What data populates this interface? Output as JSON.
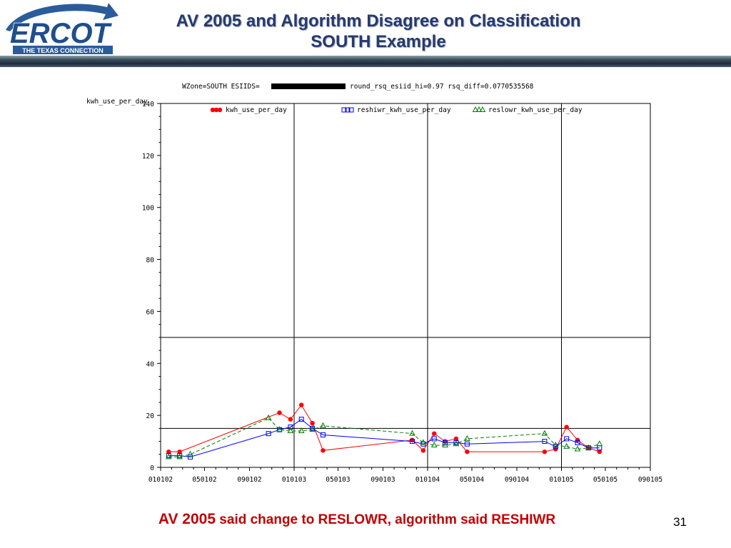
{
  "header": {
    "logo_text": "ERCOT",
    "logo_tagline": "THE TEXAS CONNECTION",
    "title_line1": "AV 2005 and Algorithm Disagree on Classification",
    "title_line2": "SOUTH Example"
  },
  "chart_data": {
    "type": "line",
    "title_prefix": "WZone=SOUTH ESIIDS=",
    "title_suffix": "round_rsq_esiid_hi=0.97 rsq_diff=0.0770535568",
    "ylabel": "kwh_use_per_day",
    "ylim": [
      0,
      140
    ],
    "yticks": [
      0,
      20,
      40,
      60,
      80,
      100,
      120,
      140
    ],
    "xticks": [
      "010102",
      "050102",
      "090102",
      "010103",
      "050103",
      "090103",
      "010104",
      "050104",
      "090104",
      "010105",
      "050105",
      "090105"
    ],
    "xlim": [
      "010102",
      "090105"
    ],
    "reference_lines_x": [
      "010102",
      "010103",
      "010104",
      "010105"
    ],
    "reference_lines_y": [
      15,
      50
    ],
    "legend_position": "top",
    "series": [
      {
        "name": "kwh_use_per_day",
        "color": "#ff0000",
        "marker": "dot",
        "dash": "solid",
        "points": [
          [
            "2002-01-23",
            6
          ],
          [
            "2002-02-22",
            6
          ],
          [
            "2002-11-22",
            21
          ],
          [
            "2002-12-22",
            18.5
          ],
          [
            "2003-01-21",
            24
          ],
          [
            "2003-02-20",
            17
          ],
          [
            "2003-03-21",
            6.5
          ],
          [
            "2003-11-20",
            10.5
          ],
          [
            "2003-12-20",
            6.5
          ],
          [
            "2004-01-19",
            13
          ],
          [
            "2004-02-18",
            10
          ],
          [
            "2004-03-19",
            11
          ],
          [
            "2004-04-18",
            6
          ],
          [
            "2004-11-16",
            6
          ],
          [
            "2004-12-16",
            7
          ],
          [
            "2005-01-15",
            15.5
          ],
          [
            "2005-02-14",
            10.5
          ],
          [
            "2005-03-16",
            7.5
          ],
          [
            "2005-04-15",
            6
          ]
        ]
      },
      {
        "name": "reshiwr_kwh_use_per_day",
        "color": "#0000ff",
        "marker": "square",
        "dash": "solid",
        "points": [
          [
            "2002-01-23",
            4.5
          ],
          [
            "2002-02-22",
            4.5
          ],
          [
            "2002-03-23",
            4
          ],
          [
            "2002-10-23",
            13
          ],
          [
            "2002-11-22",
            14.5
          ],
          [
            "2002-12-22",
            15.5
          ],
          [
            "2003-01-21",
            18.5
          ],
          [
            "2003-02-20",
            15
          ],
          [
            "2003-03-21",
            12.5
          ],
          [
            "2003-11-20",
            10
          ],
          [
            "2003-12-20",
            9
          ],
          [
            "2004-01-19",
            11
          ],
          [
            "2004-02-18",
            9.5
          ],
          [
            "2004-03-19",
            9.5
          ],
          [
            "2004-04-18",
            9
          ],
          [
            "2004-11-16",
            10
          ],
          [
            "2004-12-16",
            8
          ],
          [
            "2005-01-15",
            11
          ],
          [
            "2005-02-14",
            9.5
          ],
          [
            "2005-03-16",
            7.5
          ],
          [
            "2005-04-15",
            7.5
          ]
        ]
      },
      {
        "name": "reslowr_kwh_use_per_day",
        "color": "#008000",
        "marker": "triangle",
        "dash": "dashed",
        "points": [
          [
            "2002-01-23",
            4
          ],
          [
            "2002-02-22",
            4
          ],
          [
            "2002-03-23",
            5
          ],
          [
            "2002-10-23",
            19
          ],
          [
            "2002-11-22",
            14.5
          ],
          [
            "2002-12-22",
            14
          ],
          [
            "2003-01-21",
            14
          ],
          [
            "2003-02-20",
            14.5
          ],
          [
            "2003-03-21",
            16
          ],
          [
            "2003-11-20",
            13
          ],
          [
            "2003-12-20",
            9.5
          ],
          [
            "2004-01-19",
            8.5
          ],
          [
            "2004-02-18",
            8.5
          ],
          [
            "2004-03-19",
            9
          ],
          [
            "2004-04-18",
            11
          ],
          [
            "2004-11-16",
            13
          ],
          [
            "2004-12-16",
            8.5
          ],
          [
            "2005-01-15",
            8
          ],
          [
            "2005-02-14",
            7
          ],
          [
            "2005-03-16",
            7.5
          ],
          [
            "2005-04-15",
            9
          ]
        ]
      }
    ]
  },
  "footer": {
    "caption_lead": "AV 2005",
    "caption_rest": " said change to RESLOWR, algorithm said RESHIWR",
    "page_number": "31"
  }
}
